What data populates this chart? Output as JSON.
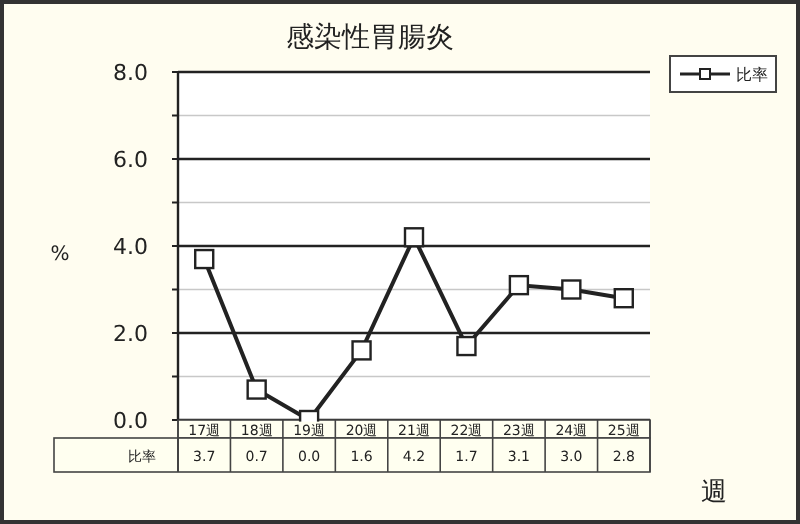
{
  "chart_data": {
    "type": "line",
    "title": "感染性胃腸炎",
    "ylabel": "%",
    "xlabel": "週",
    "categories": [
      "17週",
      "18週",
      "19週",
      "20週",
      "21週",
      "22週",
      "23週",
      "24週",
      "25週"
    ],
    "series": [
      {
        "name": "比率",
        "color": "#222222",
        "values": [
          3.7,
          0.7,
          0.0,
          1.6,
          4.2,
          1.7,
          3.1,
          3.0,
          2.8
        ],
        "value_labels": [
          "3.7",
          "0.7",
          "0.0",
          "1.6",
          "4.2",
          "1.7",
          "3.1",
          "3.0",
          "2.8"
        ]
      }
    ],
    "ylim": [
      0,
      8
    ],
    "yticks": [
      {
        "value": 0,
        "label": "0.0"
      },
      {
        "value": 1,
        "label": null
      },
      {
        "value": 2,
        "label": "2.0"
      },
      {
        "value": 3,
        "label": null
      },
      {
        "value": 4,
        "label": "4.0"
      },
      {
        "value": 5,
        "label": null
      },
      {
        "value": 6,
        "label": "6.0"
      },
      {
        "value": 7,
        "label": null
      },
      {
        "value": 8,
        "label": "8.0"
      }
    ],
    "grid": "y",
    "legend": "top right",
    "marker": "square",
    "line_style": "solid"
  }
}
